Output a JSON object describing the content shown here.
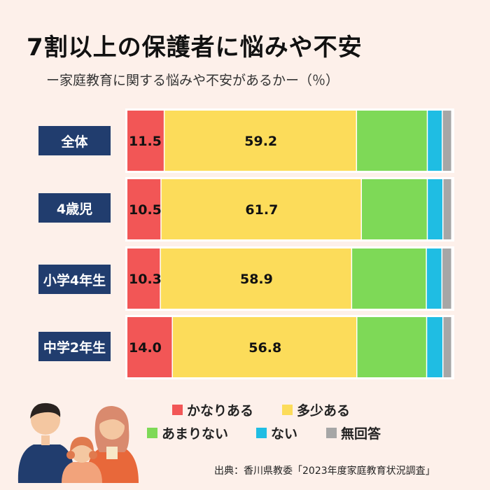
{
  "title": "7割以上の保護者に悩みや不安",
  "subtitle": "ー家庭教育に関する悩みや不安があるかー（％）",
  "chart_data": {
    "type": "bar",
    "orientation": "horizontal",
    "stacked": true,
    "categories": [
      "全体",
      "4歳児",
      "小学4年生",
      "中学2年生"
    ],
    "series": [
      {
        "name": "かなりある",
        "color": "#f25656",
        "values": [
          11.5,
          10.5,
          10.3,
          14.0
        ],
        "show_labels": true
      },
      {
        "name": "多少ある",
        "color": "#fcdc5a",
        "values": [
          59.2,
          61.7,
          58.9,
          56.8
        ],
        "show_labels": true
      },
      {
        "name": "あまりない",
        "color": "#7ed957",
        "values": [
          21.8,
          20.3,
          23.0,
          21.5
        ],
        "show_labels": false
      },
      {
        "name": "ない",
        "color": "#1fbde3",
        "values": [
          4.6,
          4.8,
          4.8,
          5.0
        ],
        "show_labels": false
      },
      {
        "name": "無回答",
        "color": "#a6a6a6",
        "values": [
          2.9,
          2.7,
          3.0,
          2.7
        ],
        "show_labels": false
      }
    ],
    "xlim": [
      0,
      100
    ],
    "legend_position": "bottom-right"
  },
  "labels_display": [
    [
      "11.5",
      "59.2"
    ],
    [
      "10.5",
      "61.7"
    ],
    [
      "10.3",
      "58.9"
    ],
    [
      "14.0",
      "56.8"
    ]
  ],
  "source": "出典：香川県教委「2023年度家庭教育状況調査」"
}
